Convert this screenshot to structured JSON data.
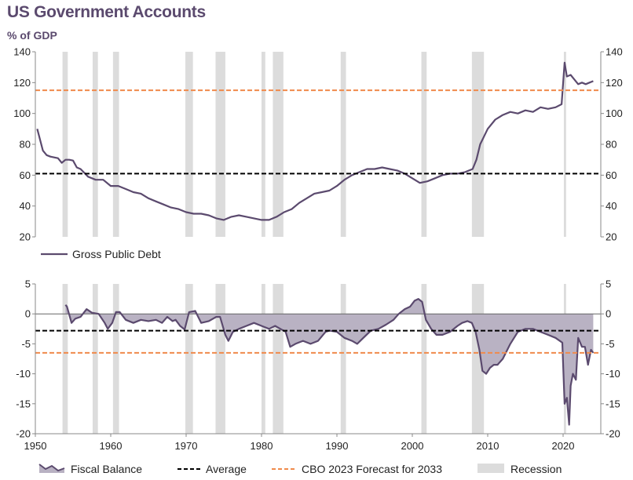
{
  "header": {
    "title": "US Government Accounts",
    "subtitle": "% of GDP"
  },
  "colors": {
    "debt_line": "#5b4a6e",
    "balance_fill": "#b9b2c3",
    "balance_line": "#5b4a6e",
    "average": "#000000",
    "cbo": "#f08a4b",
    "recession": "#dcdcdc",
    "axis": "#888888"
  },
  "recessions": [
    [
      1953.6,
      1954.3
    ],
    [
      1957.6,
      1958.3
    ],
    [
      1960.3,
      1961.1
    ],
    [
      1969.9,
      1970.9
    ],
    [
      1973.9,
      1975.2
    ],
    [
      1980.0,
      1980.5
    ],
    [
      1981.5,
      1982.9
    ],
    [
      1990.5,
      1991.2
    ],
    [
      2001.2,
      2001.9
    ],
    [
      2007.9,
      2009.5
    ],
    [
      2020.1,
      2020.4
    ]
  ],
  "chart_data": [
    {
      "type": "line",
      "panel": "top",
      "ylim": [
        20,
        140
      ],
      "xlim": [
        1950,
        2025
      ],
      "y_ticks": [
        "20",
        "40",
        "60",
        "80",
        "100",
        "120",
        "140"
      ],
      "average": 61,
      "cbo_forecast_2033": 115,
      "series": [
        {
          "name": "Gross Public Debt",
          "x": [
            1950.25,
            1951,
            1951.5,
            1952,
            1953,
            1953.5,
            1954,
            1954.5,
            1955,
            1955.5,
            1956,
            1957,
            1958,
            1959,
            1960,
            1961,
            1962,
            1963,
            1964,
            1965,
            1966,
            1967,
            1968,
            1969,
            1970,
            1971,
            1972,
            1973,
            1974,
            1975,
            1976,
            1977,
            1978,
            1979,
            1980,
            1981,
            1982,
            1983,
            1984,
            1985,
            1986,
            1987,
            1988,
            1989,
            1990,
            1991,
            1992,
            1993,
            1994,
            1995,
            1996,
            1997,
            1998,
            1999,
            2000,
            2001,
            2002,
            2003,
            2004,
            2005,
            2006,
            2007,
            2008,
            2008.5,
            2009,
            2009.5,
            2010,
            2011,
            2012,
            2013,
            2014,
            2015,
            2016,
            2017,
            2018,
            2019,
            2019.8,
            2020.2,
            2020.5,
            2021,
            2021.5,
            2022,
            2022.5,
            2023,
            2023.5,
            2024
          ],
          "y": [
            90,
            76,
            73,
            72,
            71,
            68,
            70,
            70,
            69.5,
            65,
            64,
            59,
            57,
            57,
            53,
            53,
            51,
            49,
            48,
            45,
            43,
            41,
            39,
            38,
            36,
            35,
            35,
            34,
            32,
            31,
            33,
            34,
            33,
            32,
            31,
            31,
            33,
            36,
            38,
            42,
            45,
            48,
            49,
            50,
            53,
            57,
            60,
            62,
            64,
            64,
            65,
            64,
            63,
            61,
            58,
            55,
            56,
            58,
            60,
            61,
            61,
            62,
            64,
            70,
            80,
            85,
            90,
            96,
            99,
            101,
            100,
            102,
            101,
            104,
            103,
            104,
            106,
            133,
            124,
            125,
            122,
            119,
            120,
            119,
            120,
            121
          ]
        }
      ]
    },
    {
      "type": "area",
      "panel": "bottom",
      "ylim": [
        -20,
        5
      ],
      "xlim": [
        1950,
        2025
      ],
      "y_ticks": [
        "-20",
        "-15",
        "-10",
        "-5",
        "0",
        "5"
      ],
      "x_ticks": [
        "1950",
        "1960",
        "1970",
        "1980",
        "1990",
        "2000",
        "2010",
        "2020"
      ],
      "average": -2.8,
      "cbo_forecast_2033": -6.5,
      "series": [
        {
          "name": "Fiscal Balance",
          "x": [
            1954.0,
            1954.2,
            1954.8,
            1955.3,
            1956,
            1956.8,
            1957.5,
            1958.4,
            1959.2,
            1959.6,
            1960.2,
            1960.7,
            1961.2,
            1962,
            1963,
            1964,
            1965,
            1966,
            1966.8,
            1967.5,
            1968.2,
            1968.6,
            1969.2,
            1969.8,
            1970.4,
            1971.2,
            1972,
            1973,
            1974,
            1974.5,
            1975.2,
            1975.6,
            1976.2,
            1977,
            1978,
            1979,
            1980,
            1981,
            1981.8,
            1982.5,
            1983.2,
            1983.8,
            1984.5,
            1985.5,
            1986.5,
            1987.5,
            1988.5,
            1989,
            1990,
            1991,
            1992,
            1992.7,
            1993.5,
            1994.5,
            1995.5,
            1996.5,
            1997.5,
            1998.2,
            1999,
            1999.7,
            2000.3,
            2000.8,
            2001.3,
            2001.8,
            2002.5,
            2003.2,
            2004,
            2005,
            2006,
            2006.6,
            2007.3,
            2007.9,
            2008.4,
            2008.9,
            2009.3,
            2009.8,
            2010.3,
            2010.8,
            2011.3,
            2012,
            2013,
            2014,
            2015,
            2016,
            2017,
            2018,
            2019,
            2019.9,
            2020.2,
            2020.5,
            2020.8,
            2021.0,
            2021.3,
            2021.7,
            2022.0,
            2022.5,
            2022.9,
            2023.3,
            2023.7,
            2024.0
          ],
          "y": [
            1.5,
            1.2,
            -1.5,
            -0.8,
            -0.5,
            0.8,
            0.2,
            0.0,
            -1.5,
            -2.5,
            -1.5,
            0.3,
            0.3,
            -1.0,
            -1.5,
            -1.0,
            -1.2,
            -1.0,
            -1.5,
            -0.5,
            -1.2,
            -1.0,
            -2.0,
            -2.6,
            0.3,
            0.5,
            -1.5,
            -1.2,
            -0.5,
            -0.5,
            -3.5,
            -4.5,
            -3.0,
            -2.5,
            -2.0,
            -1.5,
            -2.0,
            -2.5,
            -2.0,
            -2.5,
            -3.0,
            -5.5,
            -5.0,
            -4.5,
            -5.0,
            -4.5,
            -3.0,
            -2.8,
            -3.0,
            -4.0,
            -4.5,
            -5.0,
            -4.0,
            -2.8,
            -2.5,
            -1.8,
            -1.0,
            0.0,
            0.8,
            1.2,
            2.2,
            2.5,
            2.0,
            -1.0,
            -2.5,
            -3.5,
            -3.5,
            -3.0,
            -2.0,
            -1.5,
            -1.2,
            -1.5,
            -3.0,
            -6.0,
            -9.5,
            -10.0,
            -9.0,
            -8.5,
            -8.5,
            -7.5,
            -5.0,
            -3.0,
            -2.5,
            -2.5,
            -3.0,
            -3.5,
            -4.0,
            -4.8,
            -15.0,
            -14.0,
            -18.5,
            -12.0,
            -10.0,
            -11.0,
            -4.0,
            -5.5,
            -5.5,
            -8.5,
            -6.0,
            -6.5
          ]
        }
      ]
    }
  ],
  "legend_top": {
    "debt_label": "Gross Public Debt"
  },
  "legend_bottom": {
    "balance_label": "Fiscal Balance",
    "average_label": "Average",
    "cbo_label": "CBO 2023 Forecast for 2033",
    "recession_label": "Recession"
  }
}
